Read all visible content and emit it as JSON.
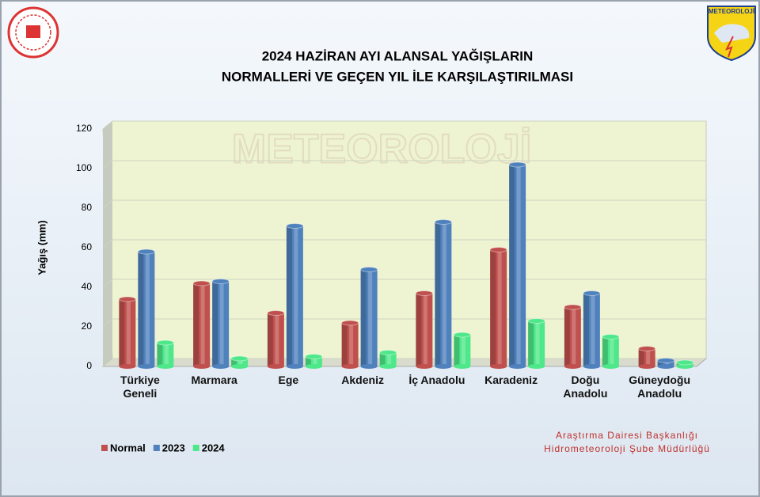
{
  "chart_data": {
    "type": "bar3d",
    "title": [
      "2024 HAZİRAN AYI ALANSAL YAĞIŞLARIN",
      "NORMALLERİ VE GEÇEN YIL İLE KARŞILAŞTIRILMASI"
    ],
    "y_label": "Yağış (mm)",
    "categories": [
      "Türkiye Geneli",
      "Marmara",
      "Ege",
      "Akdeniz",
      "İç Anadolu",
      "Karadeniz",
      "Doğu Anadolu",
      "Güneydoğu Anadolu"
    ],
    "series": [
      {
        "name": "Normal",
        "color": "#c0504d",
        "values": [
          34,
          42,
          27,
          22,
          37,
          59,
          30,
          9
        ]
      },
      {
        "name": "2023",
        "color": "#4f81bd",
        "values": [
          58,
          43,
          71,
          49,
          73,
          102,
          37,
          3
        ]
      },
      {
        "name": "2024",
        "color": "#4ee88a",
        "values": [
          12,
          4,
          5,
          7,
          16,
          23,
          15,
          2
        ]
      }
    ],
    "ylim": [
      0,
      120
    ],
    "yticks": [
      0,
      20,
      40,
      60,
      80,
      100,
      120
    ],
    "grid": true,
    "legend": "bottom-left",
    "footer": [
      "Araştırma Dairesi Başkanlığı",
      "Hidrometeoroloji Şube Müdürlüğü"
    ],
    "logo_text": "METEOROLOJİ"
  }
}
